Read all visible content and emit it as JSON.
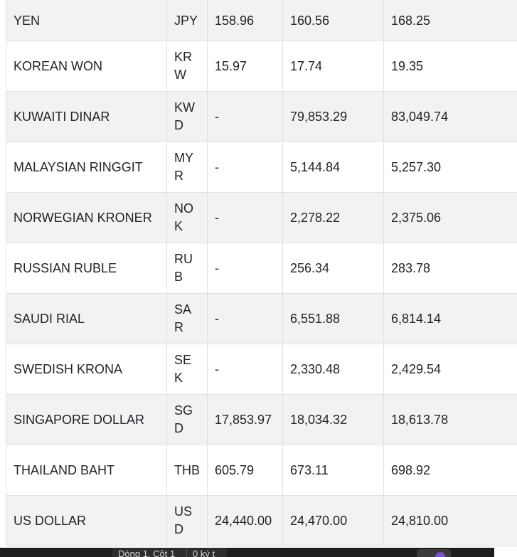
{
  "rates_table": {
    "rows": [
      {
        "name": "YEN",
        "code": "JPY",
        "buy_cash": "158.96",
        "buy_transfer": "160.56",
        "sell": "168.25"
      },
      {
        "name": "KOREAN WON",
        "code": "KRW",
        "buy_cash": "15.97",
        "buy_transfer": "17.74",
        "sell": "19.35"
      },
      {
        "name": "KUWAITI DINAR",
        "code": "KWD",
        "buy_cash": "-",
        "buy_transfer": "79,853.29",
        "sell": "83,049.74"
      },
      {
        "name": "MALAYSIAN RINGGIT",
        "code": "MYR",
        "buy_cash": "-",
        "buy_transfer": "5,144.84",
        "sell": "5,257.30"
      },
      {
        "name": "NORWEGIAN KRONER",
        "code": "NOK",
        "buy_cash": "-",
        "buy_transfer": "2,278.22",
        "sell": "2,375.06"
      },
      {
        "name": "RUSSIAN RUBLE",
        "code": "RUB",
        "buy_cash": "-",
        "buy_transfer": "256.34",
        "sell": "283.78"
      },
      {
        "name": "SAUDI RIAL",
        "code": "SAR",
        "buy_cash": "-",
        "buy_transfer": "6,551.88",
        "sell": "6,814.14"
      },
      {
        "name": "SWEDISH KRONA",
        "code": "SEK",
        "buy_cash": "-",
        "buy_transfer": "2,330.48",
        "sell": "2,429.54"
      },
      {
        "name": "SINGAPORE DOLLAR",
        "code": "SGD",
        "buy_cash": "17,853.97",
        "buy_transfer": "18,034.32",
        "sell": "18,613.78"
      },
      {
        "name": "THAILAND BAHT",
        "code": "THB",
        "buy_cash": "605.79",
        "buy_transfer": "673.11",
        "sell": "698.92"
      },
      {
        "name": "US DOLLAR",
        "code": "USD",
        "buy_cash": "24,440.00",
        "buy_transfer": "24,470.00",
        "sell": "24,810.00"
      }
    ]
  },
  "status_bar": {
    "position": "Dòng 1, Cột 1",
    "char_count": "0 ký t"
  }
}
